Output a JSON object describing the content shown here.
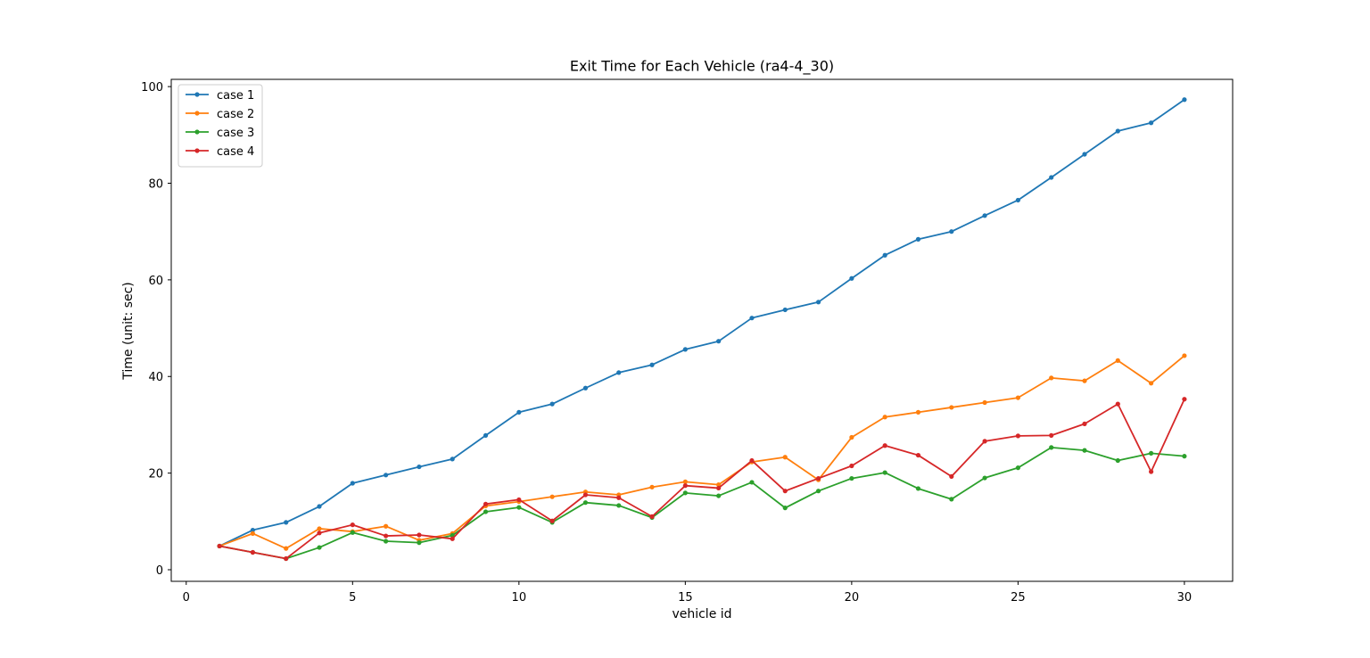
{
  "chart_data": {
    "type": "line",
    "title": "Exit Time for Each Vehicle (ra4-4_30)",
    "xlabel": "vehicle id",
    "ylabel": "Time (unit: sec)",
    "xlim": [
      -0.45,
      31.45
    ],
    "ylim": [
      -2.4,
      101.5
    ],
    "x_ticks": [
      0,
      5,
      10,
      15,
      20,
      25,
      30
    ],
    "y_ticks": [
      0,
      20,
      40,
      60,
      80,
      100
    ],
    "grid": false,
    "legend_position": "top-left",
    "x": [
      1,
      2,
      3,
      4,
      5,
      6,
      7,
      8,
      9,
      10,
      11,
      12,
      13,
      14,
      15,
      16,
      17,
      18,
      19,
      20,
      21,
      22,
      23,
      24,
      25,
      26,
      27,
      28,
      29,
      30
    ],
    "series": [
      {
        "name": "case 1",
        "color": "#1f77b4",
        "values": [
          4.9,
          8.2,
          9.8,
          13.1,
          17.9,
          19.6,
          21.3,
          22.9,
          27.8,
          32.6,
          34.3,
          37.6,
          40.8,
          42.4,
          45.6,
          47.3,
          52.1,
          53.8,
          55.4,
          60.3,
          65.1,
          68.4,
          70.0,
          73.3,
          76.5,
          81.2,
          86.0,
          90.8,
          92.5,
          97.3
        ]
      },
      {
        "name": "case 2",
        "color": "#ff7f0e",
        "values": [
          4.9,
          7.5,
          4.4,
          8.5,
          7.9,
          9.0,
          6.1,
          7.5,
          13.2,
          14.1,
          15.1,
          16.1,
          15.5,
          17.1,
          18.2,
          17.6,
          22.3,
          23.3,
          18.6,
          27.4,
          31.6,
          32.6,
          33.6,
          34.6,
          35.6,
          39.7,
          39.1,
          43.3,
          38.6,
          44.3
        ]
      },
      {
        "name": "case 3",
        "color": "#2ca02c",
        "values": [
          4.9,
          3.6,
          2.3,
          4.6,
          7.7,
          5.9,
          5.6,
          7.1,
          12.0,
          12.9,
          9.8,
          13.9,
          13.3,
          10.8,
          15.9,
          15.3,
          18.1,
          12.8,
          16.3,
          18.9,
          20.1,
          16.8,
          14.6,
          19.0,
          21.1,
          25.3,
          24.7,
          22.6,
          24.1,
          23.5
        ]
      },
      {
        "name": "case 4",
        "color": "#d62728",
        "values": [
          4.9,
          3.6,
          2.3,
          7.6,
          9.3,
          7.0,
          7.2,
          6.4,
          13.6,
          14.5,
          10.1,
          15.5,
          14.9,
          11.0,
          17.4,
          16.9,
          22.6,
          16.3,
          18.9,
          21.5,
          25.7,
          23.7,
          19.3,
          26.6,
          27.7,
          27.8,
          30.2,
          34.3,
          20.3,
          35.3
        ]
      }
    ]
  }
}
